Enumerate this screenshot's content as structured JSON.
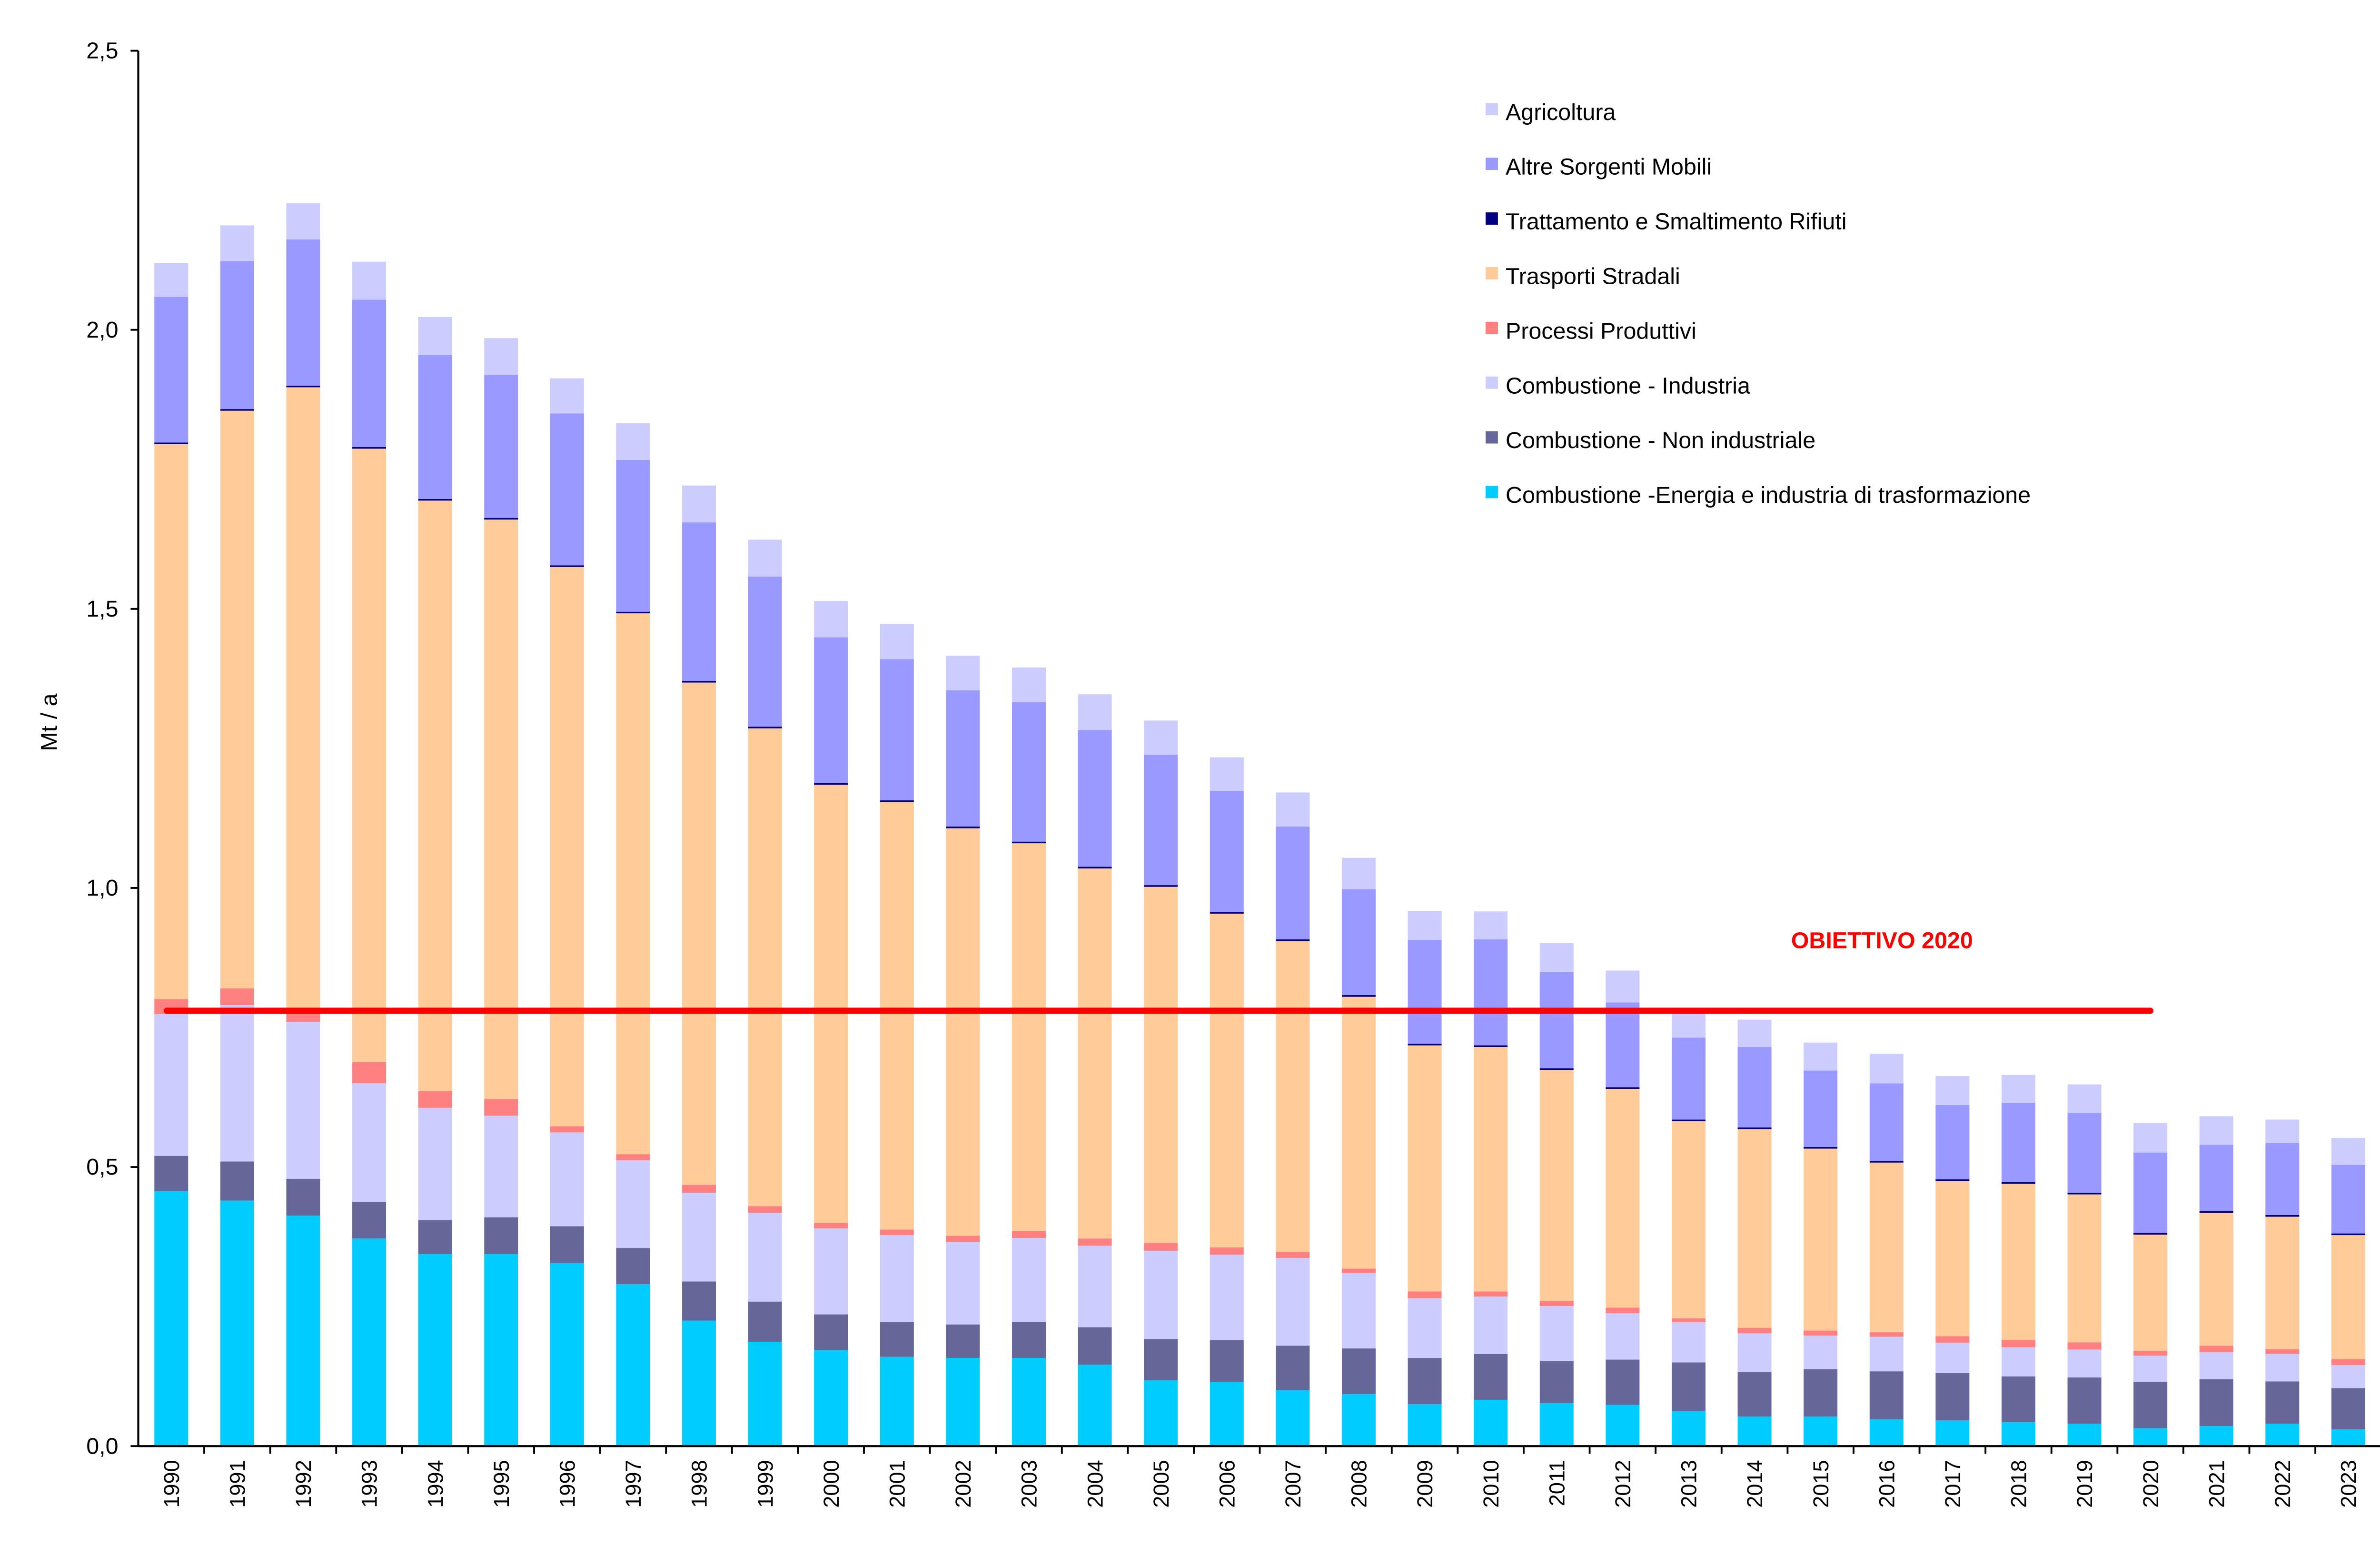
{
  "chart_data": {
    "type": "bar",
    "stacked": true,
    "title": "",
    "xlabel": "",
    "ylabel": "Mt / a",
    "ylim": [
      0,
      2.5
    ],
    "yticks": [
      "0,0",
      "0,5",
      "1,0",
      "1,5",
      "2,0",
      "2,5"
    ],
    "ytick_values": [
      0,
      0.5,
      1.0,
      1.5,
      2.0,
      2.5
    ],
    "grid": false,
    "legend_position": "top-right",
    "categories": [
      "1990",
      "1991",
      "1992",
      "1993",
      "1994",
      "1995",
      "1996",
      "1997",
      "1998",
      "1999",
      "2000",
      "2001",
      "2002",
      "2003",
      "2004",
      "2005",
      "2006",
      "2007",
      "2008",
      "2009",
      "2010",
      "2011",
      "2012",
      "2013",
      "2014",
      "2015",
      "2016",
      "2017",
      "2018",
      "2019",
      "2020",
      "2021",
      "2022",
      "2023"
    ],
    "series": [
      {
        "name": "Combustione -Energia e industria di trasformazione",
        "color": "#00CCFF",
        "values": [
          0.457,
          0.44,
          0.413,
          0.372,
          0.344,
          0.344,
          0.328,
          0.29,
          0.225,
          0.187,
          0.172,
          0.16,
          0.158,
          0.158,
          0.146,
          0.118,
          0.115,
          0.1,
          0.093,
          0.075,
          0.083,
          0.077,
          0.074,
          0.063,
          0.053,
          0.053,
          0.048,
          0.046,
          0.043,
          0.04,
          0.032,
          0.036,
          0.04,
          0.03
        ]
      },
      {
        "name": "Combustione - Non industriale",
        "color": "#666699",
        "values": [
          0.063,
          0.07,
          0.066,
          0.066,
          0.061,
          0.066,
          0.066,
          0.065,
          0.07,
          0.072,
          0.064,
          0.062,
          0.06,
          0.065,
          0.067,
          0.074,
          0.075,
          0.08,
          0.082,
          0.083,
          0.082,
          0.076,
          0.081,
          0.087,
          0.08,
          0.085,
          0.086,
          0.085,
          0.082,
          0.083,
          0.083,
          0.084,
          0.076,
          0.074
        ]
      },
      {
        "name": "Combustione - Industria",
        "color": "#CCCCFF",
        "values": [
          0.254,
          0.28,
          0.281,
          0.212,
          0.201,
          0.182,
          0.168,
          0.157,
          0.159,
          0.159,
          0.154,
          0.156,
          0.148,
          0.15,
          0.146,
          0.158,
          0.153,
          0.157,
          0.135,
          0.107,
          0.103,
          0.098,
          0.083,
          0.072,
          0.069,
          0.06,
          0.062,
          0.054,
          0.052,
          0.05,
          0.047,
          0.048,
          0.049,
          0.041
        ]
      },
      {
        "name": "Processi Produttivi",
        "color": "#FF8080",
        "values": [
          0.027,
          0.03,
          0.02,
          0.038,
          0.03,
          0.03,
          0.011,
          0.011,
          0.014,
          0.012,
          0.01,
          0.01,
          0.011,
          0.012,
          0.013,
          0.014,
          0.013,
          0.011,
          0.008,
          0.012,
          0.009,
          0.009,
          0.01,
          0.007,
          0.01,
          0.009,
          0.008,
          0.012,
          0.013,
          0.013,
          0.009,
          0.012,
          0.009,
          0.011
        ]
      },
      {
        "name": "Trasporti Stradali",
        "color": "#FFCC99",
        "values": [
          0.994,
          1.035,
          1.117,
          1.099,
          1.058,
          1.038,
          1.002,
          0.969,
          0.9,
          0.856,
          0.785,
          0.766,
          0.73,
          0.695,
          0.663,
          0.638,
          0.598,
          0.557,
          0.487,
          0.441,
          0.438,
          0.414,
          0.392,
          0.353,
          0.356,
          0.326,
          0.304,
          0.278,
          0.28,
          0.265,
          0.208,
          0.238,
          0.237,
          0.222
        ]
      },
      {
        "name": "Trattamento e Smaltimento Rifiuti",
        "color": "#000080",
        "values": [
          0.003,
          0.003,
          0.003,
          0.003,
          0.003,
          0.003,
          0.003,
          0.003,
          0.003,
          0.003,
          0.003,
          0.003,
          0.003,
          0.003,
          0.003,
          0.003,
          0.003,
          0.003,
          0.003,
          0.003,
          0.003,
          0.003,
          0.003,
          0.003,
          0.003,
          0.003,
          0.003,
          0.003,
          0.003,
          0.003,
          0.003,
          0.003,
          0.003,
          0.003
        ]
      },
      {
        "name": "Altre Sorgenti Mobili",
        "color": "#9999FF",
        "values": [
          0.261,
          0.265,
          0.262,
          0.264,
          0.258,
          0.256,
          0.272,
          0.272,
          0.284,
          0.269,
          0.261,
          0.253,
          0.244,
          0.25,
          0.245,
          0.234,
          0.217,
          0.202,
          0.19,
          0.186,
          0.19,
          0.172,
          0.152,
          0.147,
          0.144,
          0.137,
          0.139,
          0.133,
          0.142,
          0.143,
          0.144,
          0.119,
          0.129,
          0.123
        ]
      },
      {
        "name": "Agricoltura",
        "color": "#CCCCFF",
        "values": [
          0.061,
          0.064,
          0.065,
          0.068,
          0.068,
          0.066,
          0.063,
          0.066,
          0.066,
          0.066,
          0.065,
          0.063,
          0.062,
          0.062,
          0.064,
          0.061,
          0.06,
          0.061,
          0.056,
          0.052,
          0.05,
          0.052,
          0.057,
          0.052,
          0.049,
          0.05,
          0.053,
          0.052,
          0.05,
          0.051,
          0.053,
          0.051,
          0.042,
          0.048
        ]
      }
    ],
    "target_line": {
      "label": "OBIETTIVO 2020",
      "value": 0.78,
      "from": "1990",
      "to": "2020",
      "color": "#FF0000"
    }
  }
}
